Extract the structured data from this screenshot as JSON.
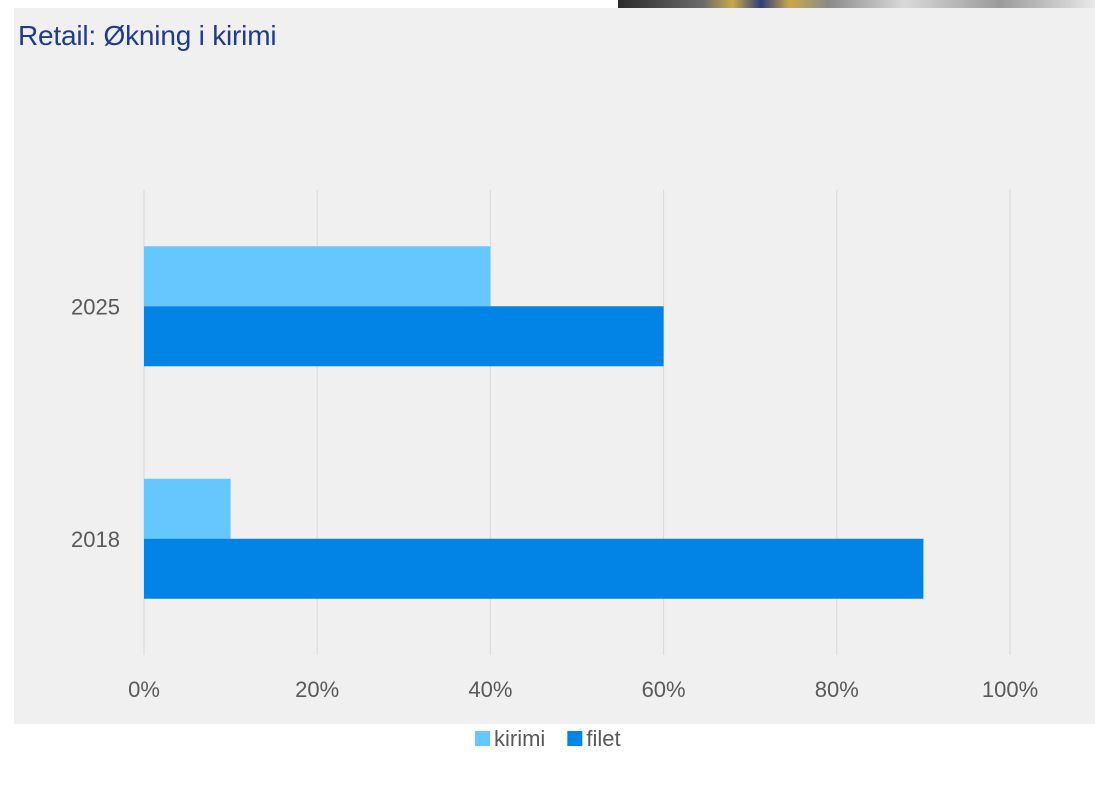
{
  "title": "Retail: Økning i kirimi",
  "colors": {
    "kirimi": "#66c6fe",
    "filet": "#0284e6",
    "grid": "#d9d9d9",
    "title": "#1f3a93"
  },
  "chart_data": {
    "type": "bar",
    "orientation": "horizontal",
    "title": "Retail: Økning i kirimi",
    "xlabel": "",
    "ylabel": "",
    "categories": [
      "2025",
      "2018"
    ],
    "series": [
      {
        "name": "kirimi",
        "values": [
          40,
          10
        ]
      },
      {
        "name": "filet",
        "values": [
          60,
          90
        ]
      }
    ],
    "xlim": [
      0,
      100
    ],
    "x_ticks": [
      "0%",
      "20%",
      "40%",
      "60%",
      "80%",
      "100%"
    ],
    "grid": true,
    "legend": "bottom"
  }
}
